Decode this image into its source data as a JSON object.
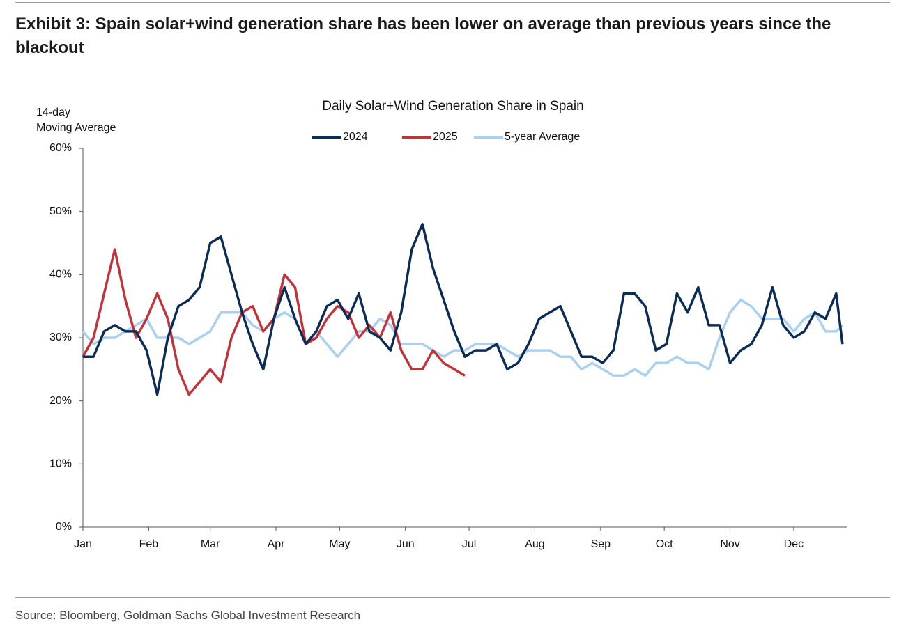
{
  "title": "Exhibit 3: Spain solar+wind generation share has been lower on average than previous years since the blackout",
  "source": "Source: Bloomberg, Goldman Sachs Global Investment Research",
  "chart_data": {
    "type": "line",
    "title": "Daily Solar+Wind Generation Share in Spain",
    "y_label": [
      "14-day",
      "Moving Average"
    ],
    "x": [
      0,
      5,
      10,
      15,
      20,
      25,
      30,
      35,
      40,
      45,
      50,
      55,
      60,
      65,
      70,
      75,
      80,
      85,
      90,
      95,
      100,
      105,
      110,
      115,
      120,
      125,
      130,
      135,
      140,
      145,
      150,
      155,
      160,
      165,
      170,
      175,
      180,
      185,
      190,
      195,
      200,
      205,
      210,
      215,
      220,
      225,
      230,
      235,
      240,
      245,
      250,
      255,
      260,
      265,
      270,
      275,
      280,
      285,
      290,
      295,
      300,
      305,
      310,
      315,
      320,
      325,
      330,
      335,
      340,
      345,
      350,
      355,
      358
    ],
    "xlim": [
      0,
      360
    ],
    "xticks": [
      {
        "value": 0,
        "label": "Jan"
      },
      {
        "value": 31,
        "label": "Feb"
      },
      {
        "value": 60,
        "label": "Mar"
      },
      {
        "value": 91,
        "label": "Apr"
      },
      {
        "value": 121,
        "label": "May"
      },
      {
        "value": 152,
        "label": "Jun"
      },
      {
        "value": 182,
        "label": "Jul"
      },
      {
        "value": 213,
        "label": "Aug"
      },
      {
        "value": 244,
        "label": "Sep"
      },
      {
        "value": 274,
        "label": "Oct"
      },
      {
        "value": 305,
        "label": "Nov"
      },
      {
        "value": 335,
        "label": "Dec"
      }
    ],
    "ylim": [
      0,
      60
    ],
    "yticks": [
      {
        "value": 0,
        "label": "0%"
      },
      {
        "value": 10,
        "label": "10%"
      },
      {
        "value": 20,
        "label": "20%"
      },
      {
        "value": 30,
        "label": "30%"
      },
      {
        "value": 40,
        "label": "40%"
      },
      {
        "value": 50,
        "label": "50%"
      },
      {
        "value": 60,
        "label": "60%"
      }
    ],
    "legend": "top",
    "series": [
      {
        "name": "2024",
        "color": "#0b2d55",
        "values": [
          27,
          27,
          31,
          32,
          31,
          31,
          28,
          21,
          30,
          35,
          36,
          38,
          45,
          46,
          40,
          34,
          29,
          25,
          33,
          38,
          33,
          29,
          31,
          35,
          36,
          33,
          37,
          31,
          30,
          28,
          34,
          44,
          48,
          41,
          36,
          31,
          27,
          28,
          28,
          29,
          25,
          26,
          29,
          33,
          34,
          35,
          31,
          27,
          27,
          26,
          28,
          37,
          37,
          35,
          28,
          29,
          37,
          34,
          38,
          32,
          32,
          26,
          28,
          29,
          32,
          38,
          32,
          30,
          31,
          34,
          33,
          37,
          29
        ]
      },
      {
        "name": "2025",
        "color": "#c0333a",
        "values": [
          27,
          30,
          37,
          44,
          36,
          30,
          33,
          37,
          33,
          25,
          21,
          23,
          25,
          23,
          30,
          34,
          35,
          31,
          33,
          40,
          38,
          29,
          30,
          33,
          35,
          34,
          30,
          32,
          30,
          34,
          28,
          25,
          25,
          28,
          26,
          25,
          24,
          null,
          null,
          null,
          null,
          null,
          null,
          null,
          null,
          null,
          null,
          null,
          null,
          null,
          null,
          null,
          null,
          null,
          null,
          null,
          null,
          null,
          null,
          null,
          null,
          null,
          null,
          null,
          null,
          null,
          null,
          null,
          null,
          null,
          null,
          null,
          null
        ]
      },
      {
        "name": "5-year Average",
        "color": "#a9d0ee",
        "values": [
          31,
          29,
          30,
          30,
          31,
          32,
          33,
          30,
          30,
          30,
          29,
          30,
          31,
          34,
          34,
          34,
          32,
          31,
          33,
          34,
          33,
          29,
          31,
          29,
          27,
          29,
          31,
          31,
          33,
          32,
          29,
          29,
          29,
          28,
          27,
          28,
          28,
          29,
          29,
          29,
          28,
          27,
          28,
          28,
          28,
          27,
          27,
          25,
          26,
          25,
          24,
          24,
          25,
          24,
          26,
          26,
          27,
          26,
          26,
          25,
          30,
          34,
          36,
          35,
          33,
          33,
          33,
          31,
          33,
          34,
          31,
          31,
          32
        ]
      }
    ]
  }
}
